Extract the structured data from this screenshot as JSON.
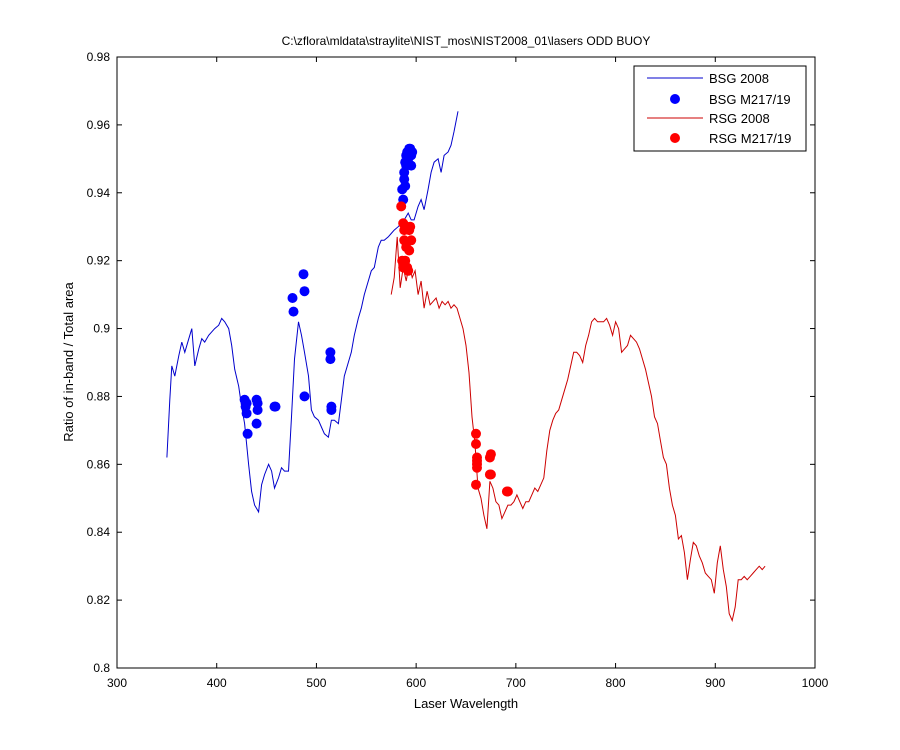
{
  "chart_data": {
    "type": "line",
    "title": "C:\\zflora\\mldata\\straylite\\NIST_mos\\NIST2008_01\\lasers   ODD BUOY",
    "xlabel": "Laser Wavelength",
    "ylabel": "Ratio of in-band / Total area",
    "xlim": [
      300,
      1000
    ],
    "ylim": [
      0.8,
      0.98
    ],
    "xticks": [
      "300",
      "400",
      "500",
      "600",
      "700",
      "800",
      "900",
      "1000"
    ],
    "yticks": [
      "0.8",
      "0.82",
      "0.84",
      "0.86",
      "0.88",
      "0.9",
      "0.92",
      "0.94",
      "0.96",
      "0.98"
    ],
    "grid": false,
    "legend_position": "top-right",
    "series": [
      {
        "name": "BSG 2008",
        "kind": "line",
        "color": "#0000cc",
        "x": [
          350,
          353,
          355,
          358,
          362,
          365,
          368,
          372,
          375,
          378,
          382,
          385,
          388,
          392,
          395,
          398,
          402,
          405,
          408,
          412,
          415,
          418,
          422,
          425,
          428,
          432,
          435,
          438,
          442,
          445,
          448,
          452,
          455,
          458,
          462,
          465,
          468,
          472,
          475,
          478,
          482,
          485,
          488,
          492,
          495,
          498,
          502,
          505,
          508,
          512,
          515,
          518,
          522,
          525,
          528,
          532,
          535,
          538,
          542,
          545,
          548,
          552,
          555,
          558,
          562,
          565,
          568,
          572,
          575,
          578,
          582,
          585,
          588,
          592,
          595,
          598,
          602,
          605,
          608,
          612,
          615,
          618,
          622,
          625,
          628,
          632,
          635,
          638,
          642
        ],
        "y": [
          0.862,
          0.879,
          0.889,
          0.886,
          0.892,
          0.896,
          0.893,
          0.897,
          0.9,
          0.889,
          0.894,
          0.897,
          0.896,
          0.898,
          0.899,
          0.9,
          0.901,
          0.903,
          0.902,
          0.9,
          0.895,
          0.888,
          0.883,
          0.877,
          0.872,
          0.86,
          0.852,
          0.848,
          0.846,
          0.854,
          0.857,
          0.86,
          0.858,
          0.853,
          0.856,
          0.859,
          0.858,
          0.858,
          0.874,
          0.891,
          0.902,
          0.898,
          0.893,
          0.886,
          0.876,
          0.874,
          0.873,
          0.871,
          0.869,
          0.868,
          0.873,
          0.873,
          0.872,
          0.879,
          0.886,
          0.89,
          0.893,
          0.898,
          0.903,
          0.906,
          0.91,
          0.914,
          0.917,
          0.918,
          0.924,
          0.926,
          0.926,
          0.927,
          0.928,
          0.929,
          0.93,
          0.931,
          0.932,
          0.934,
          0.932,
          0.932,
          0.936,
          0.938,
          0.935,
          0.941,
          0.946,
          0.949,
          0.95,
          0.946,
          0.951,
          0.952,
          0.954,
          0.958,
          0.964
        ]
      },
      {
        "name": "BSG M217/19",
        "kind": "scatter",
        "color": "#0000ff",
        "x": [
          428,
          429,
          430,
          431,
          430,
          440,
          441,
          440,
          441,
          458,
          459,
          476,
          477,
          487,
          488,
          488,
          514,
          514,
          515,
          515,
          586,
          587,
          588,
          588,
          589,
          589,
          590,
          590,
          591,
          592,
          593,
          594,
          595,
          595,
          596
        ],
        "y": [
          0.879,
          0.877,
          0.875,
          0.869,
          0.878,
          0.879,
          0.876,
          0.872,
          0.878,
          0.877,
          0.877,
          0.909,
          0.905,
          0.916,
          0.911,
          0.88,
          0.893,
          0.891,
          0.877,
          0.876,
          0.941,
          0.938,
          0.944,
          0.946,
          0.949,
          0.942,
          0.951,
          0.948,
          0.952,
          0.95,
          0.953,
          0.953,
          0.951,
          0.948,
          0.952
        ]
      },
      {
        "name": "RSG 2008",
        "kind": "line",
        "color": "#cc0000",
        "x": [
          575,
          578,
          581,
          584,
          587,
          590,
          593,
          596,
          599,
          602,
          605,
          608,
          611,
          614,
          617,
          620,
          623,
          626,
          629,
          632,
          635,
          638,
          641,
          644,
          647,
          650,
          653,
          656,
          659,
          662,
          665,
          668,
          671,
          674,
          677,
          680,
          683,
          686,
          689,
          692,
          695,
          698,
          701,
          704,
          707,
          710,
          713,
          716,
          719,
          722,
          725,
          728,
          731,
          734,
          737,
          740,
          743,
          746,
          749,
          752,
          755,
          758,
          761,
          764,
          767,
          770,
          773,
          776,
          779,
          782,
          785,
          788,
          791,
          794,
          797,
          800,
          803,
          806,
          809,
          812,
          815,
          818,
          821,
          824,
          827,
          830,
          833,
          836,
          839,
          842,
          845,
          848,
          851,
          854,
          857,
          860,
          863,
          866,
          869,
          872,
          875,
          878,
          881,
          884,
          887,
          890,
          893,
          896,
          899,
          902,
          905,
          908,
          911,
          914,
          917,
          920,
          923,
          926,
          929,
          932,
          935,
          938,
          941,
          944,
          947,
          950
        ],
        "y": [
          0.91,
          0.915,
          0.927,
          0.912,
          0.918,
          0.914,
          0.919,
          0.915,
          0.917,
          0.91,
          0.914,
          0.906,
          0.911,
          0.907,
          0.908,
          0.909,
          0.906,
          0.908,
          0.907,
          0.908,
          0.906,
          0.907,
          0.906,
          0.903,
          0.9,
          0.895,
          0.887,
          0.874,
          0.866,
          0.853,
          0.85,
          0.845,
          0.841,
          0.855,
          0.853,
          0.849,
          0.848,
          0.844,
          0.846,
          0.848,
          0.848,
          0.849,
          0.851,
          0.849,
          0.847,
          0.849,
          0.849,
          0.851,
          0.853,
          0.852,
          0.854,
          0.856,
          0.864,
          0.87,
          0.873,
          0.875,
          0.876,
          0.879,
          0.882,
          0.885,
          0.889,
          0.893,
          0.893,
          0.892,
          0.89,
          0.895,
          0.898,
          0.902,
          0.903,
          0.902,
          0.902,
          0.902,
          0.903,
          0.901,
          0.898,
          0.902,
          0.9,
          0.893,
          0.894,
          0.895,
          0.898,
          0.897,
          0.896,
          0.894,
          0.891,
          0.888,
          0.884,
          0.88,
          0.874,
          0.872,
          0.867,
          0.862,
          0.86,
          0.853,
          0.848,
          0.845,
          0.838,
          0.839,
          0.834,
          0.826,
          0.832,
          0.837,
          0.836,
          0.833,
          0.831,
          0.828,
          0.827,
          0.826,
          0.822,
          0.831,
          0.836,
          0.829,
          0.824,
          0.816,
          0.814,
          0.818,
          0.826,
          0.826,
          0.827,
          0.826,
          0.827,
          0.828,
          0.829,
          0.83,
          0.829,
          0.83
        ]
      },
      {
        "name": "RSG M217/19",
        "kind": "scatter",
        "color": "#ff0000",
        "x": [
          585,
          586,
          587,
          587,
          588,
          588,
          589,
          590,
          590,
          591,
          592,
          593,
          593,
          594,
          595,
          660,
          660,
          661,
          661,
          660,
          661,
          661,
          674,
          675,
          674,
          675,
          691,
          692
        ],
        "y": [
          0.936,
          0.92,
          0.918,
          0.931,
          0.929,
          0.926,
          0.92,
          0.93,
          0.924,
          0.918,
          0.917,
          0.929,
          0.923,
          0.93,
          0.926,
          0.869,
          0.866,
          0.862,
          0.86,
          0.854,
          0.861,
          0.859,
          0.862,
          0.863,
          0.857,
          0.857,
          0.852,
          0.852
        ]
      }
    ]
  }
}
